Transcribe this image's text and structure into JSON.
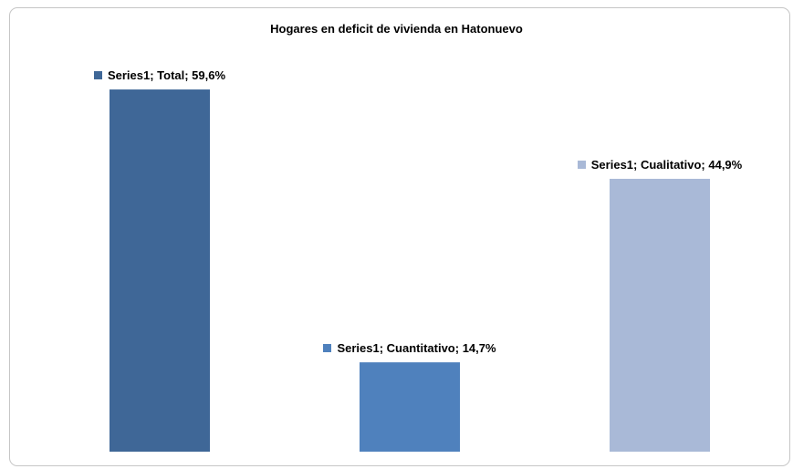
{
  "chart_data": {
    "type": "bar",
    "title": "Hogares en deficit de vivienda en Hatonuevo",
    "categories": [
      "Total",
      "Cuantitativo",
      "Cualitativo"
    ],
    "series": [
      {
        "name": "Series1",
        "colors": [
          "#3f6797",
          "#4f81bd",
          "#a9b9d7"
        ],
        "values": [
          59.6,
          14.7,
          44.9
        ],
        "value_labels": [
          "Series1; Total; 59,6%",
          "Series1; Cuantitativo; 14,7%",
          "Series1; Cualitativo; 44,9%"
        ]
      }
    ]
  }
}
